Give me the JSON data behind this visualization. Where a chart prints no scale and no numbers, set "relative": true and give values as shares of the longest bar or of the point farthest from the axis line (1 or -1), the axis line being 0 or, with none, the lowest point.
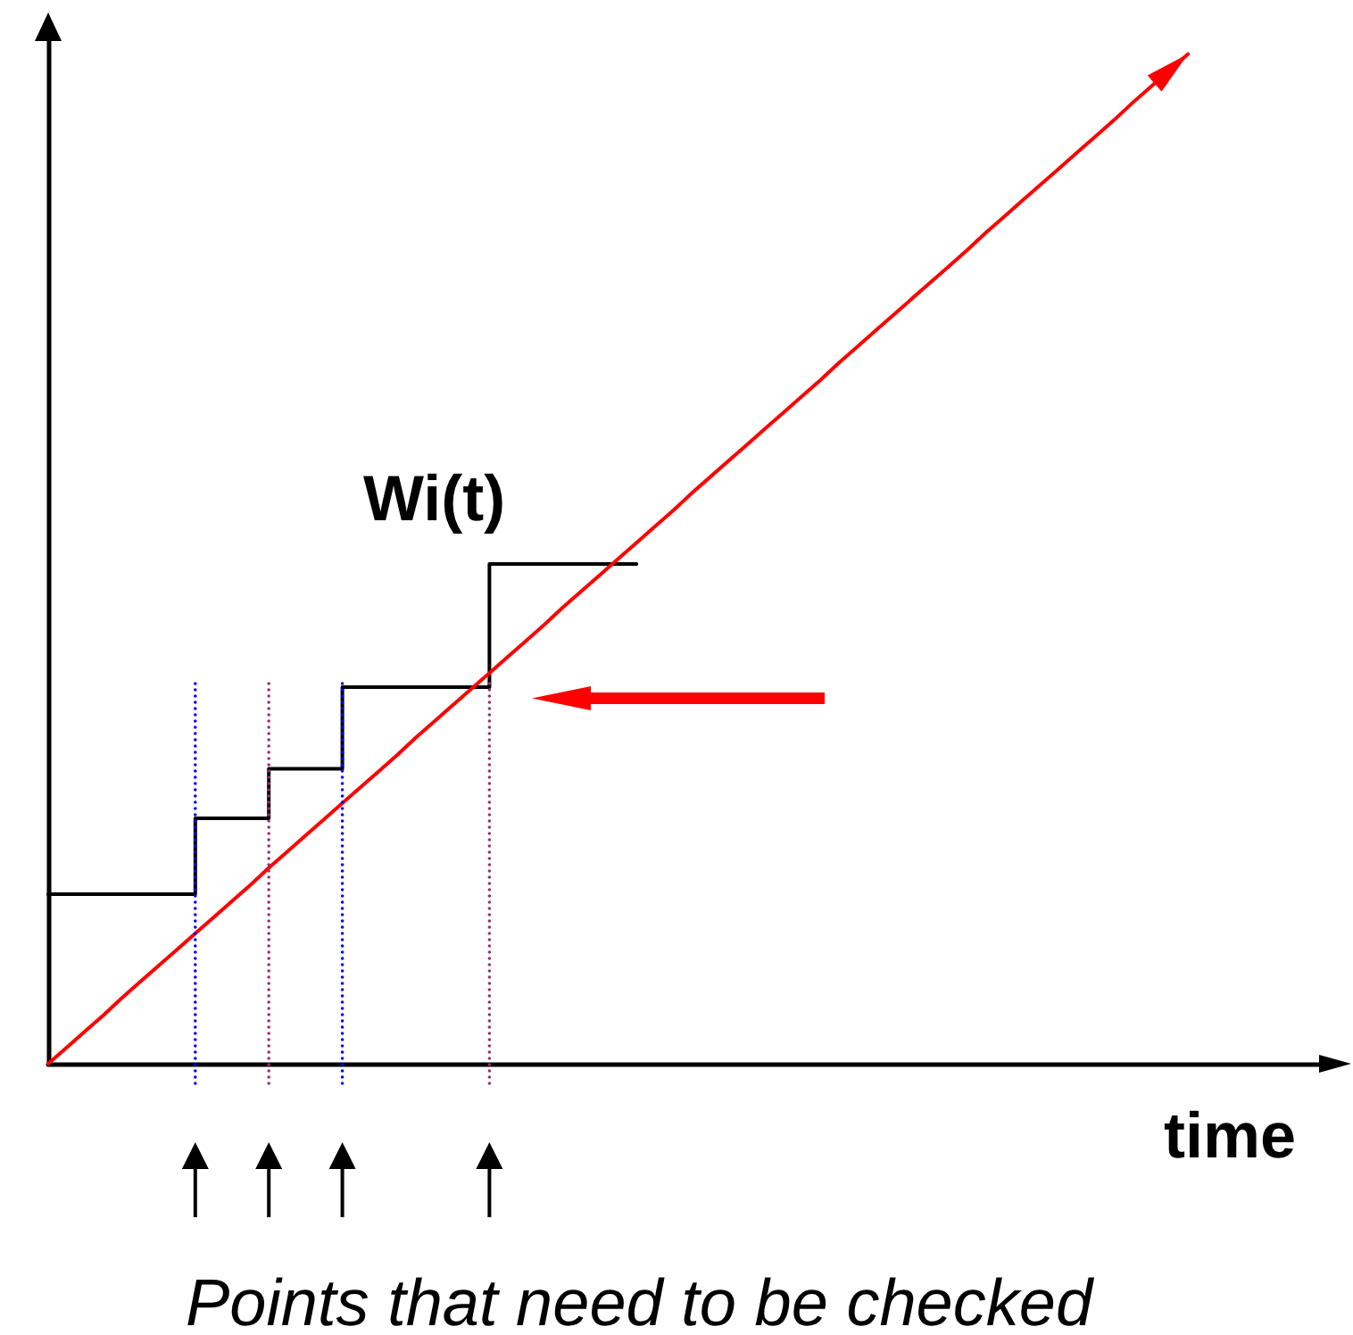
{
  "chart_data": {
    "type": "line",
    "relative": true,
    "xlabel": "time",
    "annotations": [
      "Points that need to be checked"
    ],
    "marker": "none",
    "line_style": "solid",
    "categories": [
      null,
      null,
      null,
      null,
      null,
      null,
      null,
      null,
      null,
      null,
      null,
      null,
      null,
      null,
      null,
      null,
      null,
      null,
      null,
      null,
      null,
      null,
      null,
      null,
      null,
      null,
      null,
      null,
      null,
      null,
      null,
      null,
      null,
      null,
      null,
      null,
      null,
      null,
      null,
      null,
      null,
      null,
      null,
      null,
      null,
      null,
      null,
      null,
      null,
      null,
      null,
      null,
      null,
      null,
      null,
      null,
      null,
      null,
      null,
      null,
      null,
      null,
      null,
      null,
      null,
      null,
      null,
      null,
      null,
      null,
      null
    ],
    "series": [
      {
        "name": "Wi(t)",
        "type": "step",
        "color": "#000000",
        "values": [
          0.168,
          0.168,
          0.168,
          0.168,
          0.168,
          0.168,
          0.168,
          0.168,
          0.243,
          0.243,
          0.243,
          0.243,
          0.292,
          0.292,
          0.292,
          0.292,
          0.373,
          0.373,
          0.373,
          0.373,
          0.373,
          0.373,
          0.373,
          0.373,
          0.495,
          0.495,
          0.495,
          0.495,
          0.495,
          0.495,
          0.495,
          0.495,
          0.495,
          null,
          null,
          null,
          null,
          null,
          null,
          null,
          null,
          null,
          null,
          null,
          null,
          null,
          null,
          null,
          null,
          null,
          null,
          null,
          null,
          null,
          null,
          null,
          null,
          null,
          null,
          null,
          null,
          null,
          null,
          null,
          null,
          null,
          null,
          null,
          null,
          null,
          null
        ]
      },
      {
        "color": "#ff0000",
        "values": [
          0,
          0.016,
          0.032,
          0.048,
          0.065,
          0.081,
          0.097,
          0.113,
          0.129,
          0.145,
          0.161,
          0.177,
          0.194,
          0.21,
          0.226,
          0.242,
          0.258,
          0.274,
          0.29,
          0.306,
          0.323,
          0.339,
          0.355,
          0.371,
          0.387,
          0.403,
          0.419,
          0.435,
          0.452,
          0.468,
          0.484,
          0.5,
          0.516,
          0.532,
          0.548,
          0.565,
          0.581,
          0.597,
          0.613,
          0.629,
          0.645,
          0.661,
          0.677,
          0.694,
          0.71,
          0.726,
          0.742,
          0.758,
          0.774,
          0.79,
          0.806,
          0.823,
          0.839,
          0.855,
          0.871,
          0.887,
          0.903,
          0.919,
          0.935,
          0.952,
          0.968,
          0.984,
          1,
          null,
          null,
          null,
          null,
          null,
          null,
          null,
          null
        ]
      }
    ]
  }
}
